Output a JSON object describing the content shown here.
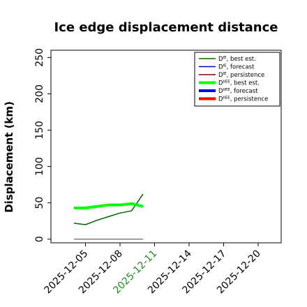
{
  "chart_data": {
    "type": "line",
    "title": "Ice edge displacement distance",
    "xlabel": "",
    "ylabel": "Displacement (km)",
    "ylim": [
      -5,
      260
    ],
    "yticks": [
      0,
      50,
      100,
      150,
      200,
      250
    ],
    "xlim": [
      "2025-12-02",
      "2025-12-22"
    ],
    "xticks": [
      "2025-12-05",
      "2025-12-08",
      "2025-12-11",
      "2025-12-14",
      "2025-12-17",
      "2025-12-20"
    ],
    "highlight_tick": "2025-12-11",
    "grid": false,
    "legend_position": "top-right",
    "series": [
      {
        "name": "D^IE, best est.",
        "legend_main": "D",
        "legend_sup": "IE",
        "legend_rest": ", best est.",
        "color": "#006400",
        "width": "thin",
        "x": [
          "2025-12-04",
          "2025-12-05",
          "2025-12-06",
          "2025-12-07",
          "2025-12-08",
          "2025-12-09",
          "2025-12-10"
        ],
        "y": [
          22,
          20,
          26,
          31,
          36,
          39,
          62
        ]
      },
      {
        "name": "D^IE, forecast",
        "legend_main": "D",
        "legend_sup": "IE",
        "legend_rest": ", forecast",
        "color": "#0000cd",
        "width": "thin",
        "x": [],
        "y": []
      },
      {
        "name": "D^IE, persistence",
        "legend_main": "D",
        "legend_sup": "IE",
        "legend_rest": ", persistence",
        "color": "#8b0000",
        "width": "thin",
        "x": [],
        "y": []
      },
      {
        "name": "D^IIEE, best est.",
        "legend_main": "D",
        "legend_sup": "IIEE",
        "legend_rest": ", best est.",
        "color": "#00ff00",
        "width": "thick",
        "x": [
          "2025-12-04",
          "2025-12-05",
          "2025-12-06",
          "2025-12-07",
          "2025-12-08",
          "2025-12-09",
          "2025-12-10"
        ],
        "y": [
          43,
          43,
          45,
          47,
          47,
          49,
          45
        ]
      },
      {
        "name": "D^IIEE, forecast",
        "legend_main": "D",
        "legend_sup": "IIEE",
        "legend_rest": ", forecast",
        "color": "#0000ff",
        "width": "thick",
        "x": [],
        "y": []
      },
      {
        "name": "D^IIEE, persistence",
        "legend_main": "D",
        "legend_sup": "IIEE",
        "legend_rest": ", persistence",
        "color": "#ff0000",
        "width": "thick",
        "x": [],
        "y": []
      },
      {
        "name": "",
        "color": "#808080",
        "width": "thin",
        "x": [
          "2025-12-04",
          "2025-12-10"
        ],
        "y": [
          0,
          0
        ]
      }
    ]
  }
}
